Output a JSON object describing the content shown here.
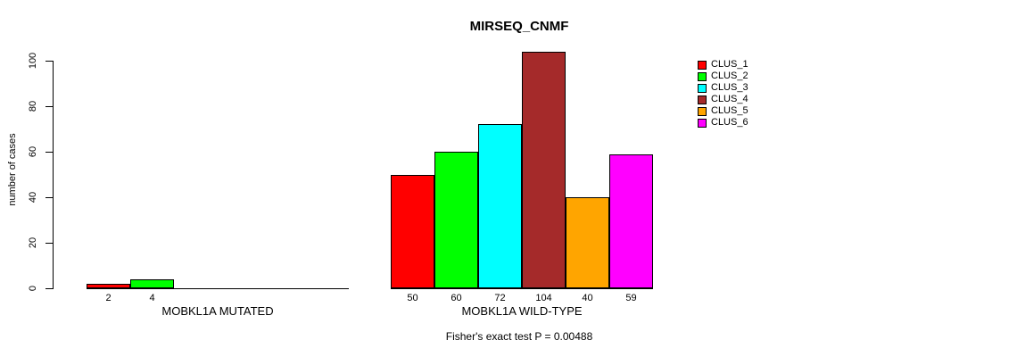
{
  "chart_data": {
    "type": "bar",
    "title": "MIRSEQ_CNMF",
    "ylabel": "number of cases",
    "y_ticks": [
      0,
      20,
      40,
      60,
      80,
      100
    ],
    "ylim": [
      0,
      100
    ],
    "grid": false,
    "legend_position": "right",
    "series_names": [
      "CLUS_1",
      "CLUS_2",
      "CLUS_3",
      "CLUS_4",
      "CLUS_5",
      "CLUS_6"
    ],
    "series_colors": [
      "#ff0000",
      "#00ff00",
      "#00ffff",
      "#a52a2a",
      "#ffa500",
      "#ff00ff"
    ],
    "groups": [
      {
        "label": "MOBKL1A MUTATED",
        "values": [
          2,
          4,
          0,
          0,
          0,
          0
        ]
      },
      {
        "label": "MOBKL1A WILD-TYPE",
        "values": [
          50,
          60,
          72,
          104,
          40,
          59
        ]
      }
    ],
    "annotation": "Fisher's exact test P = 0.00488"
  }
}
